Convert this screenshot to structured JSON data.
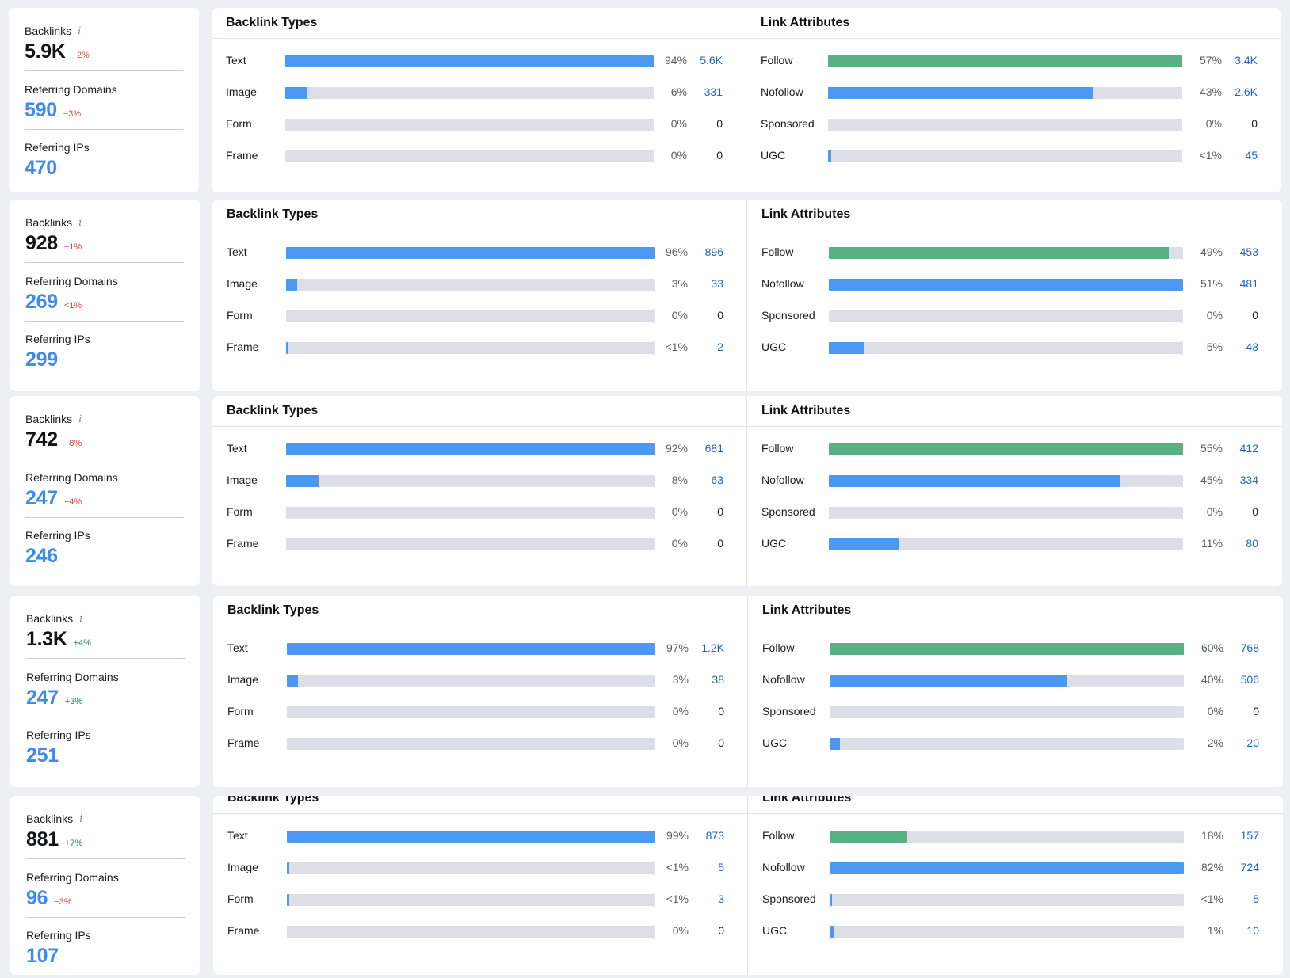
{
  "labels": {
    "backlinks": "Backlinks",
    "info_icon": "i",
    "referring_domains": "Referring Domains",
    "referring_ips": "Referring IPs",
    "backlink_types": "Backlink Types",
    "link_attributes": "Link Attributes"
  },
  "colors": {
    "bar_blue": "#4c99f3",
    "bar_green": "#58b184",
    "track": "#dedfe6",
    "count_link": "#1e63c7",
    "negative": "#e0483b",
    "positive": "#1f8a4c"
  },
  "rows": [
    {
      "stats": {
        "backlinks": "5.9K",
        "backlinks_change": "−2%",
        "domains": "590",
        "domains_change": "−3%",
        "ips": "470"
      },
      "types": [
        {
          "label": "Text",
          "pct": "94%",
          "count": "5.6K",
          "fill": 1.0
        },
        {
          "label": "Image",
          "pct": "6%",
          "count": "331",
          "fill": 0.06
        },
        {
          "label": "Form",
          "pct": "0%",
          "count": "0",
          "fill": 0
        },
        {
          "label": "Frame",
          "pct": "0%",
          "count": "0",
          "fill": 0
        }
      ],
      "attrs": [
        {
          "label": "Follow",
          "pct": "57%",
          "count": "3.4K",
          "fill": 1.0
        },
        {
          "label": "Nofollow",
          "pct": "43%",
          "count": "2.6K",
          "fill": 0.75
        },
        {
          "label": "Sponsored",
          "pct": "0%",
          "count": "0",
          "fill": 0
        },
        {
          "label": "UGC",
          "pct": "<1%",
          "count": "45",
          "fill": 0.01
        }
      ]
    },
    {
      "stats": {
        "backlinks": "928",
        "backlinks_change": "−1%",
        "domains": "269",
        "domains_change": "<1%",
        "ips": "299"
      },
      "types": [
        {
          "label": "Text",
          "pct": "96%",
          "count": "896",
          "fill": 1.0
        },
        {
          "label": "Image",
          "pct": "3%",
          "count": "33",
          "fill": 0.03
        },
        {
          "label": "Form",
          "pct": "0%",
          "count": "0",
          "fill": 0
        },
        {
          "label": "Frame",
          "pct": "<1%",
          "count": "2",
          "fill": 0.004
        }
      ],
      "attrs": [
        {
          "label": "Follow",
          "pct": "49%",
          "count": "453",
          "fill": 0.96
        },
        {
          "label": "Nofollow",
          "pct": "51%",
          "count": "481",
          "fill": 1.0
        },
        {
          "label": "Sponsored",
          "pct": "0%",
          "count": "0",
          "fill": 0
        },
        {
          "label": "UGC",
          "pct": "5%",
          "count": "43",
          "fill": 0.1
        }
      ]
    },
    {
      "stats": {
        "backlinks": "742",
        "backlinks_change": "−8%",
        "domains": "247",
        "domains_change": "−4%",
        "ips": "246"
      },
      "types": [
        {
          "label": "Text",
          "pct": "92%",
          "count": "681",
          "fill": 1.0
        },
        {
          "label": "Image",
          "pct": "8%",
          "count": "63",
          "fill": 0.09
        },
        {
          "label": "Form",
          "pct": "0%",
          "count": "0",
          "fill": 0
        },
        {
          "label": "Frame",
          "pct": "0%",
          "count": "0",
          "fill": 0
        }
      ],
      "attrs": [
        {
          "label": "Follow",
          "pct": "55%",
          "count": "412",
          "fill": 1.0
        },
        {
          "label": "Nofollow",
          "pct": "45%",
          "count": "334",
          "fill": 0.82
        },
        {
          "label": "Sponsored",
          "pct": "0%",
          "count": "0",
          "fill": 0
        },
        {
          "label": "UGC",
          "pct": "11%",
          "count": "80",
          "fill": 0.2
        }
      ]
    },
    {
      "stats": {
        "backlinks": "1.3K",
        "backlinks_change": "+4%",
        "domains": "247",
        "domains_change": "+3%",
        "ips": "251"
      },
      "types": [
        {
          "label": "Text",
          "pct": "97%",
          "count": "1.2K",
          "fill": 1.0
        },
        {
          "label": "Image",
          "pct": "3%",
          "count": "38",
          "fill": 0.03
        },
        {
          "label": "Form",
          "pct": "0%",
          "count": "0",
          "fill": 0
        },
        {
          "label": "Frame",
          "pct": "0%",
          "count": "0",
          "fill": 0
        }
      ],
      "attrs": [
        {
          "label": "Follow",
          "pct": "60%",
          "count": "768",
          "fill": 1.0
        },
        {
          "label": "Nofollow",
          "pct": "40%",
          "count": "506",
          "fill": 0.67
        },
        {
          "label": "Sponsored",
          "pct": "0%",
          "count": "0",
          "fill": 0
        },
        {
          "label": "UGC",
          "pct": "2%",
          "count": "20",
          "fill": 0.03
        }
      ]
    },
    {
      "stats": {
        "backlinks": "881",
        "backlinks_change": "+7%",
        "domains": "96",
        "domains_change": "−3%",
        "ips": "107"
      },
      "types": [
        {
          "label": "Text",
          "pct": "99%",
          "count": "873",
          "fill": 1.0
        },
        {
          "label": "Image",
          "pct": "<1%",
          "count": "5",
          "fill": 0.006
        },
        {
          "label": "Form",
          "pct": "<1%",
          "count": "3",
          "fill": 0.006
        },
        {
          "label": "Frame",
          "pct": "0%",
          "count": "0",
          "fill": 0
        }
      ],
      "attrs": [
        {
          "label": "Follow",
          "pct": "18%",
          "count": "157",
          "fill": 0.22
        },
        {
          "label": "Nofollow",
          "pct": "82%",
          "count": "724",
          "fill": 1.0
        },
        {
          "label": "Sponsored",
          "pct": "<1%",
          "count": "5",
          "fill": 0.006
        },
        {
          "label": "UGC",
          "pct": "1%",
          "count": "10",
          "fill": 0.012
        }
      ]
    }
  ]
}
